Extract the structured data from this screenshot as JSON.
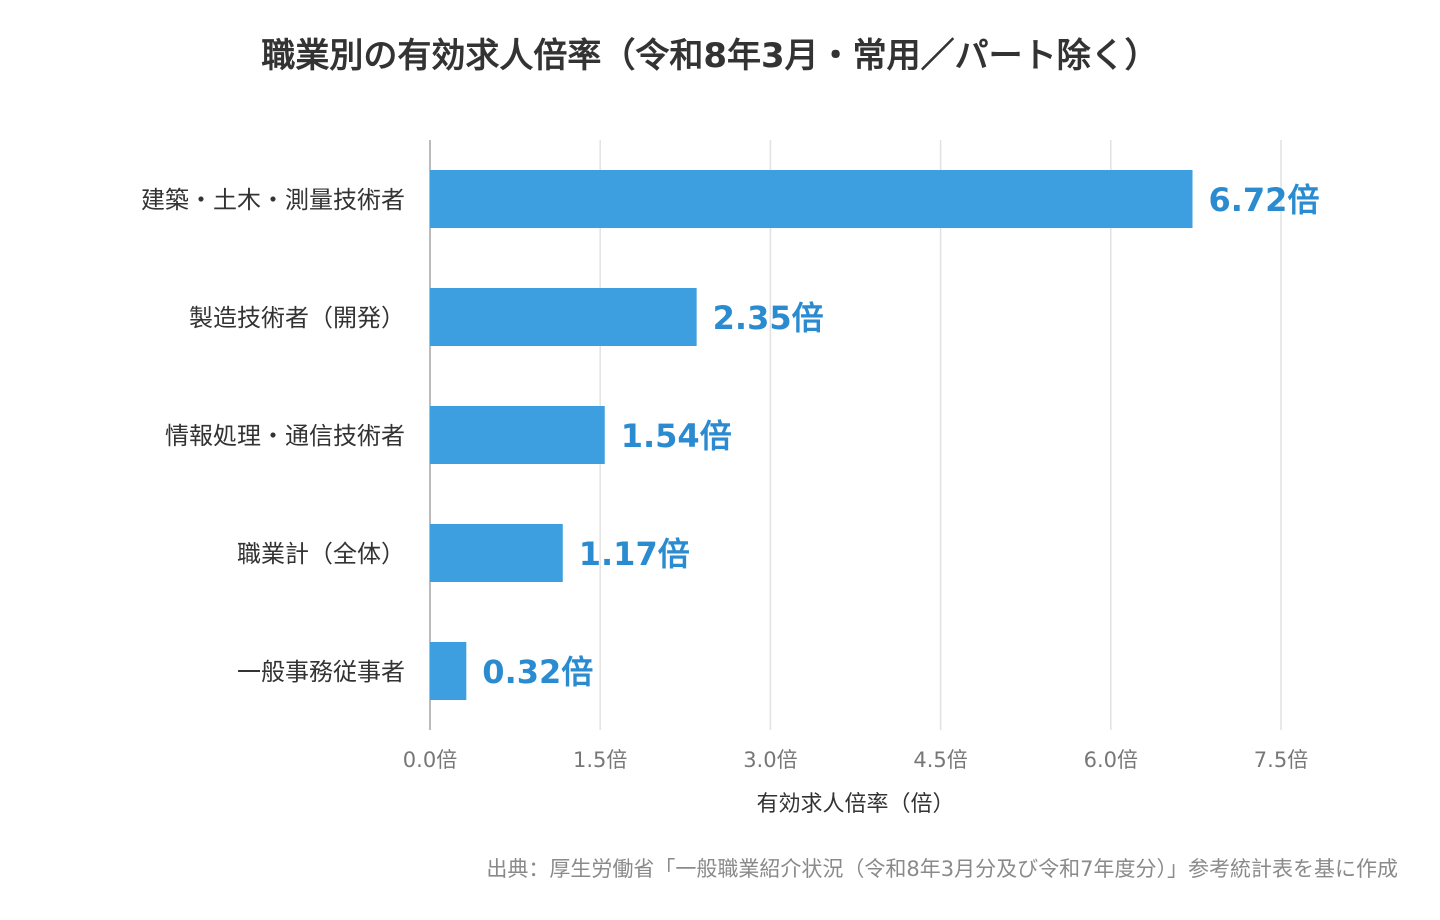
{
  "chart_data": {
    "type": "bar",
    "orientation": "horizontal",
    "title": "職業別の有効求人倍率（令和8年3月・常用／パート除く）",
    "categories": [
      "建築・土木・測量技術者",
      "製造技術者（開発）",
      "情報処理・通信技術者",
      "職業計（全体）",
      "一般事務従事者"
    ],
    "values": [
      6.72,
      2.35,
      1.54,
      1.17,
      0.32
    ],
    "value_labels": [
      "6.72倍",
      "2.35倍",
      "1.54倍",
      "1.17倍",
      "0.32倍"
    ],
    "xlabel": "有効求人倍率（倍）",
    "ylabel": "",
    "xlim": [
      0,
      7.5
    ],
    "ticks": [
      0,
      1.5,
      3.0,
      4.5,
      6.0,
      7.5
    ],
    "tick_labels": [
      "0.0倍",
      "1.5倍",
      "3.0倍",
      "4.5倍",
      "6.0倍",
      "7.5倍"
    ],
    "grid": "vertical",
    "legend": "none"
  },
  "colors": {
    "bar": "#3d9fdf",
    "value_label": "#2a8bd0",
    "grid": "#e2e2e2",
    "axis": "#bbbbbb"
  },
  "source_note": "出典：厚生労働省「一般職業紹介状況（令和8年3月分及び令和7年度分）」参考統計表を基に作成"
}
